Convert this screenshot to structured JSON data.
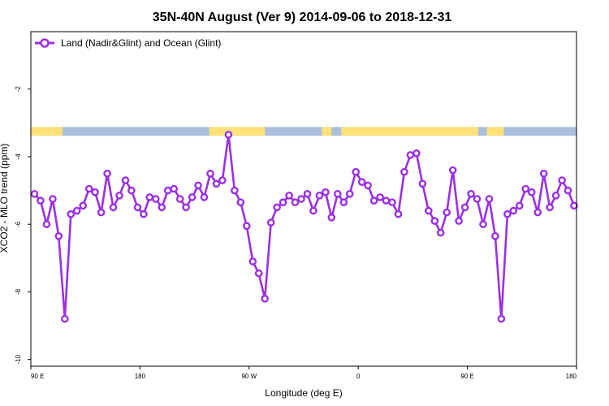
{
  "chart_data": {
    "type": "line",
    "title": "35N-40N August (Ver 9)   2014-09-06 to 2018-12-31",
    "xlabel": "Longitude (deg E)",
    "ylabel": "XCO2 - MLO trend (ppm)",
    "x_ticks": [
      {
        "value": 90,
        "label": "90 E"
      },
      {
        "value": 180,
        "label": "180"
      },
      {
        "value": 270,
        "label": "90 W"
      },
      {
        "value": 360,
        "label": "0"
      },
      {
        "value": 450,
        "label": "90 E"
      },
      {
        "value": 540,
        "label": "180"
      }
    ],
    "y_ticks": [
      {
        "value": -2,
        "label": "-2"
      },
      {
        "value": -4,
        "label": "-4"
      },
      {
        "value": -6,
        "label": "-6"
      },
      {
        "value": -8,
        "label": "-8"
      },
      {
        "value": -10,
        "label": "-10"
      }
    ],
    "xlim": [
      90,
      540
    ],
    "ylim": [
      -10.2,
      -0.3
    ],
    "grid": false,
    "legend_position": "top-left",
    "land_ocean_strip": {
      "y_range": [
        -3.12,
        -3.38
      ],
      "land_color": "#ffe07a",
      "ocean_color": "#a9bfdc",
      "land_segments": [
        [
          90,
          116
        ],
        [
          237,
          283
        ],
        [
          330,
          338
        ],
        [
          346,
          459
        ],
        [
          466,
          480
        ]
      ]
    },
    "series": [
      {
        "name": "Land (Nadir&Glint) and Ocean (Glint)",
        "color": "#9b30e6",
        "x": [
          93,
          98,
          103,
          108,
          113,
          118,
          123,
          128,
          133,
          138,
          143,
          148,
          153,
          158,
          163,
          168,
          173,
          178,
          183,
          188,
          193,
          198,
          203,
          208,
          213,
          218,
          223,
          228,
          233,
          238,
          243,
          248,
          253,
          258,
          263,
          268,
          273,
          278,
          283,
          288,
          293,
          298,
          303,
          308,
          313,
          318,
          323,
          328,
          333,
          338,
          343,
          348,
          353,
          358,
          363,
          368,
          373,
          378,
          383,
          388,
          393,
          398,
          403,
          408,
          413,
          418,
          423,
          428,
          433,
          438,
          443,
          448,
          453,
          458,
          463,
          468,
          473,
          478,
          483,
          488,
          493,
          498,
          503,
          508,
          513,
          518,
          523,
          528,
          533,
          538
        ],
        "y": [
          -5.1,
          -5.3,
          -6.0,
          -5.25,
          -6.35,
          -8.8,
          -5.7,
          -5.6,
          -5.45,
          -4.95,
          -5.05,
          -5.65,
          -4.5,
          -5.5,
          -5.15,
          -4.7,
          -5.0,
          -5.5,
          -5.7,
          -5.2,
          -5.25,
          -5.5,
          -5.0,
          -4.95,
          -5.25,
          -5.5,
          -5.2,
          -4.85,
          -5.2,
          -4.5,
          -4.8,
          -4.7,
          -3.35,
          -5.0,
          -5.35,
          -6.05,
          -7.1,
          -7.45,
          -8.2,
          -5.95,
          -5.5,
          -5.35,
          -5.15,
          -5.35,
          -5.25,
          -5.1,
          -5.6,
          -5.15,
          -5.05,
          -5.8,
          -5.1,
          -5.35,
          -5.1,
          -4.45,
          -4.75,
          -4.85,
          -5.3,
          -5.2,
          -5.3,
          -5.35,
          -5.7,
          -4.45,
          -3.95,
          -3.9,
          -4.8,
          -5.6,
          -5.9,
          -6.25,
          -5.65,
          -4.4,
          -5.9,
          -5.5,
          -5.1,
          -5.25,
          -6.0,
          -5.25,
          -6.35,
          -8.8,
          -5.7,
          -5.6,
          -5.45,
          -4.95,
          -5.05,
          -5.65,
          -4.5,
          -5.5,
          -5.15,
          -4.7,
          -5.0,
          -5.45
        ]
      }
    ]
  }
}
